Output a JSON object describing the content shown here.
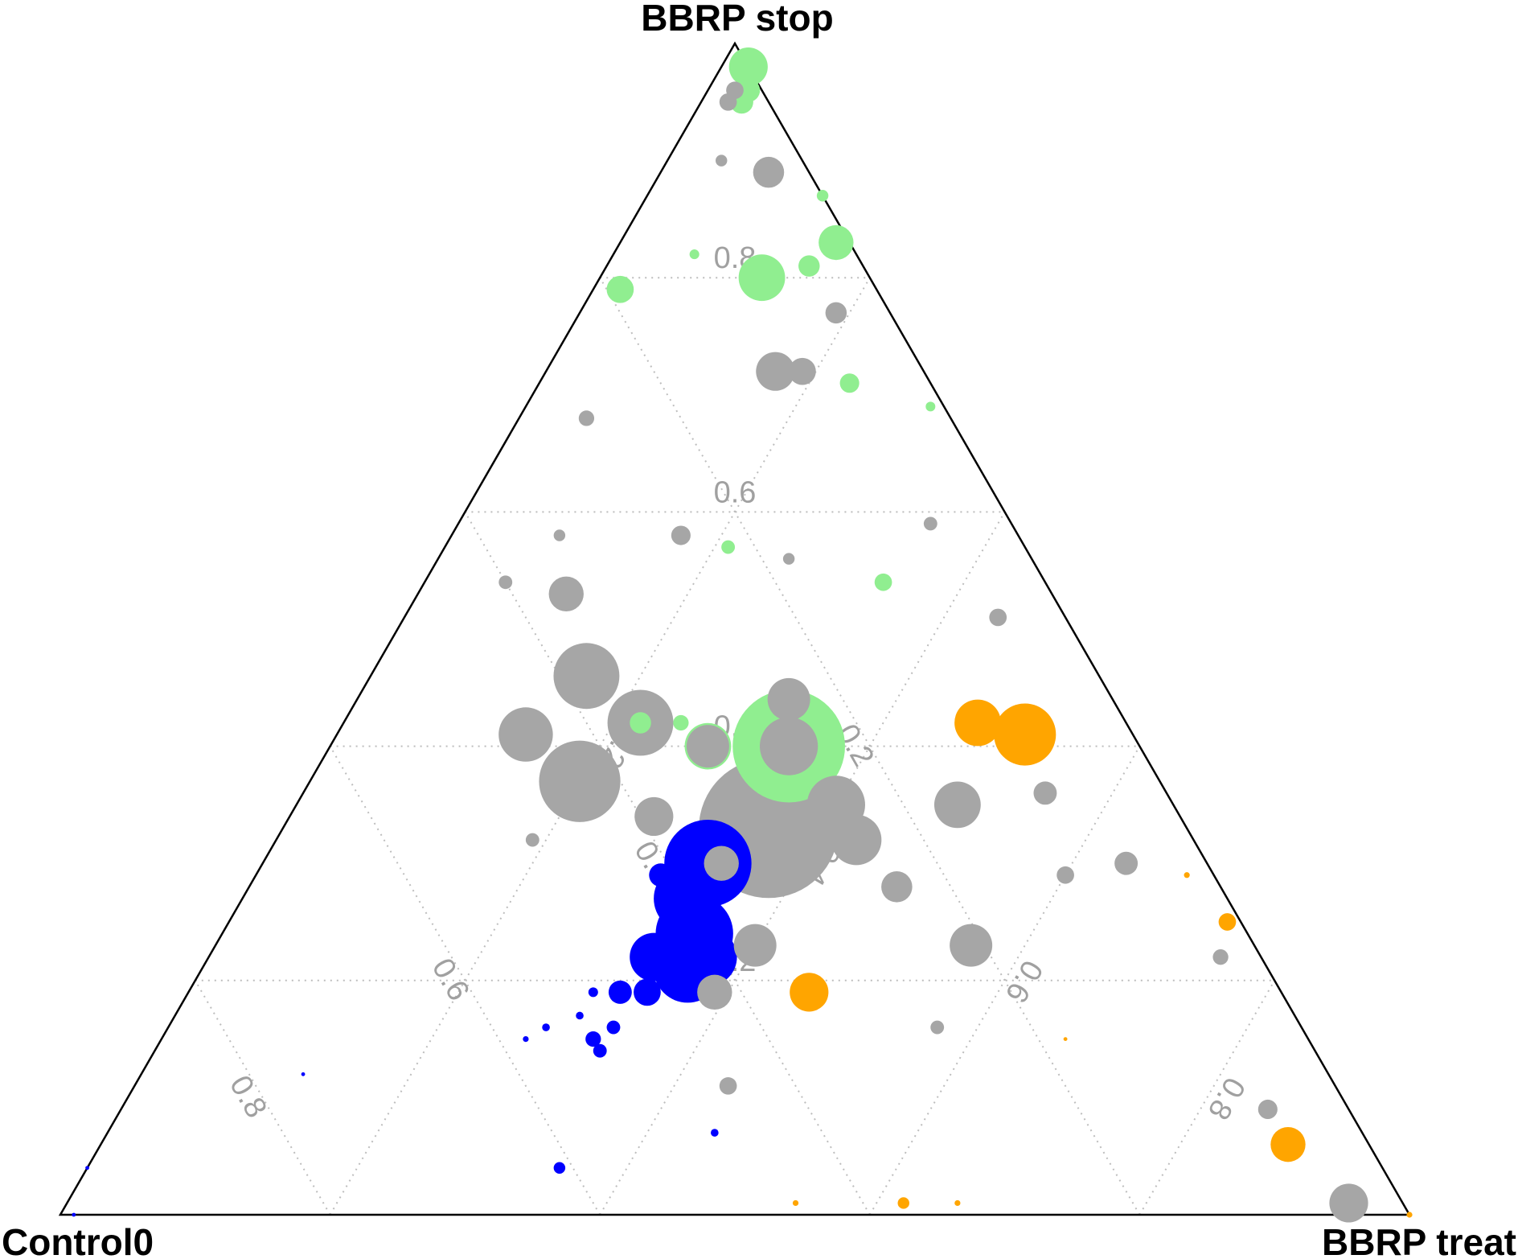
{
  "chart_data": {
    "type": "ternary",
    "top_label": "BBRP stop",
    "left_label": "Control0",
    "right_label": "BBRP treat",
    "stop_ticks": [
      0.2,
      0.4,
      0.6,
      0.8
    ],
    "treat_ticks": [
      0.2,
      0.4,
      0.6,
      0.8
    ],
    "control_ticks": [
      0.2,
      0.4,
      0.6,
      0.8
    ],
    "grid": true,
    "series": [
      {
        "color": "#a6a6a6",
        "control": [
          0.31,
          0.43,
          0.45,
          0.38,
          0.36,
          0.24,
          0.26,
          0.25,
          0.25,
          0.32,
          0.36,
          0.03,
          0.11,
          0.09,
          0.16,
          0.21,
          0.24,
          0.37,
          0.42,
          0.39,
          0.36,
          0.04,
          0.06,
          0.09,
          0.06,
          0.11,
          0.03,
          0.05,
          0.04,
          0.25,
          0.27,
          0.4,
          0.34,
          0.06,
          0.18,
          0.45,
          0.27,
          0.03,
          0.02,
          0.06,
          0.49
        ],
        "treat": [
          0.36,
          0.2,
          0.14,
          0.16,
          0.22,
          0.32,
          0.34,
          0.4,
          0.43,
          0.28,
          0.11,
          0.08,
          0.17,
          0.19,
          0.49,
          0.56,
          0.48,
          0.4,
          0.39,
          0.27,
          0.34,
          0.95,
          0.85,
          0.55,
          0.64,
          0.6,
          0.75,
          0.44,
          0.19,
          0.17,
          0.05,
          0.06,
          0.08,
          0.35,
          0.26,
          0.44,
          0.57,
          0.02,
          0.02,
          0.04,
          0.19
        ],
        "stop": [
          0.33,
          0.37,
          0.41,
          0.46,
          0.42,
          0.44,
          0.4,
          0.35,
          0.32,
          0.4,
          0.53,
          0.89,
          0.72,
          0.72,
          0.35,
          0.23,
          0.28,
          0.23,
          0.19,
          0.34,
          0.3,
          0.01,
          0.09,
          0.36,
          0.3,
          0.29,
          0.22,
          0.51,
          0.77,
          0.58,
          0.68,
          0.54,
          0.58,
          0.59,
          0.56,
          0.11,
          0.16,
          0.95,
          0.96,
          0.9,
          0.32
        ],
        "size": [
          72,
          42,
          28,
          34,
          34,
          22,
          30,
          30,
          26,
          22,
          18,
          16,
          20,
          14,
          24,
          22,
          16,
          22,
          18,
          20,
          18,
          20,
          10,
          12,
          12,
          9,
          8,
          9,
          11,
          10,
          8,
          7,
          6,
          7,
          6,
          9,
          7,
          9,
          9,
          6,
          7
        ]
      },
      {
        "color": "#90ee90",
        "control": [
          0.26,
          0.08,
          0.01,
          0.19,
          0.0,
          0.02,
          0.01,
          0.04,
          0.32,
          0.33,
          0.36,
          0.06,
          0.12,
          0.22,
          0.0,
          0.01,
          0.12
        ],
        "treat": [
          0.34,
          0.12,
          0.16,
          0.02,
          0.02,
          0.03,
          0.03,
          0.15,
          0.28,
          0.25,
          0.22,
          0.23,
          0.34,
          0.21,
          0.13,
          0.3,
          0.06
        ],
        "stop": [
          0.4,
          0.8,
          0.83,
          0.79,
          0.98,
          0.95,
          0.96,
          0.81,
          0.4,
          0.42,
          0.42,
          0.71,
          0.54,
          0.57,
          0.87,
          0.69,
          0.82
        ],
        "size": [
          58,
          24,
          18,
          14,
          20,
          12,
          12,
          11,
          24,
          8,
          11,
          10,
          9,
          7,
          6,
          5,
          5
        ]
      },
      {
        "color": "#0000ff",
        "control": [
          0.37,
          0.41,
          0.43,
          0.4,
          0.41,
          0.45,
          0.47,
          0.49,
          0.41,
          0.53,
          0.53,
          0.51,
          0.51,
          0.53,
          0.56,
          0.61,
          0.48,
          0.58,
          0.76,
          0.99,
          0.96
        ],
        "treat": [
          0.33,
          0.35,
          0.36,
          0.33,
          0.37,
          0.33,
          0.34,
          0.32,
          0.3,
          0.32,
          0.33,
          0.33,
          0.3,
          0.3,
          0.28,
          0.35,
          0.45,
          0.27,
          0.12,
          0.01,
          0.0
        ],
        "stop": [
          0.3,
          0.24,
          0.21,
          0.27,
          0.22,
          0.22,
          0.19,
          0.19,
          0.29,
          0.15,
          0.14,
          0.16,
          0.19,
          0.17,
          0.16,
          0.04,
          0.07,
          0.15,
          0.12,
          0.0,
          0.04
        ],
        "size": [
          45,
          40,
          35,
          35,
          30,
          25,
          14,
          12,
          12,
          8,
          7,
          7,
          5,
          4,
          4,
          6,
          4,
          3,
          2,
          2,
          2
        ]
      },
      {
        "color": "#ffa500",
        "control": [
          0.08,
          0.11,
          0.35,
          0.06,
          0.01,
          0.37,
          0.33,
          0.02,
          0.18,
          0.45,
          0.0
        ],
        "treat": [
          0.51,
          0.47,
          0.46,
          0.88,
          0.74,
          0.62,
          0.66,
          0.69,
          0.67,
          0.54,
          1.0
        ],
        "stop": [
          0.41,
          0.42,
          0.19,
          0.06,
          0.25,
          0.01,
          0.01,
          0.29,
          0.15,
          0.01,
          0.0
        ],
        "size": [
          32,
          24,
          20,
          18,
          9,
          6,
          3,
          3,
          2,
          3,
          3
        ]
      }
    ]
  }
}
